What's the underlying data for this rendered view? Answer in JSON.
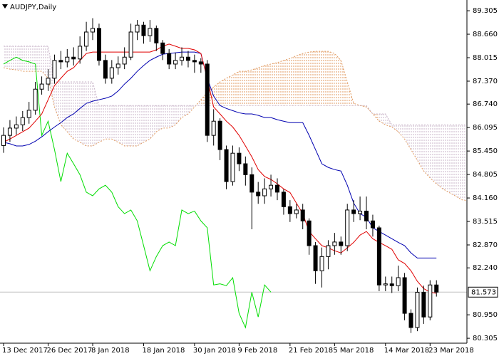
{
  "chart_data": {
    "type": "candlestick",
    "title": "AUDJPY,Daily",
    "categories": [
      "13 Dec 2017",
      null,
      null,
      null,
      null,
      null,
      null,
      "26 Dec 2017",
      null,
      null,
      null,
      null,
      null,
      null,
      "8 Jan 2018",
      null,
      null,
      null,
      null,
      null,
      null,
      null,
      "18 Jan 2018",
      null,
      null,
      null,
      null,
      null,
      null,
      null,
      "30 Jan 2018",
      null,
      null,
      null,
      null,
      null,
      null,
      "9 Feb 2018",
      null,
      null,
      null,
      null,
      null,
      null,
      null,
      "21 Feb 2018",
      null,
      null,
      null,
      null,
      null,
      null,
      "5 Mar 2018",
      null,
      null,
      null,
      null,
      null,
      null,
      null,
      "14 Mar 2018",
      null,
      null,
      null,
      null,
      null,
      null,
      "23 Mar 2018",
      null,
      null,
      null,
      null,
      null,
      null
    ],
    "open": [
      85.6,
      85.88,
      86.08,
      86.17,
      86.37,
      86.57,
      87.15,
      87.29,
      87.45,
      87.94,
      87.9,
      88.03,
      87.98,
      88.33,
      88.72,
      88.82,
      87.94,
      87.45,
      87.74,
      87.84,
      88.03,
      88.72,
      88.91,
      88.62,
      88.82,
      88.42,
      88.13,
      87.84,
      87.94,
      88.03,
      87.94,
      87.9,
      87.84,
      85.88,
      86.27,
      85.49,
      84.61,
      85.39,
      85.1,
      84.8,
      84.32,
      84.22,
      84.41,
      84.51,
      84.32,
      83.92,
      83.73,
      83.83,
      83.53,
      82.85,
      82.16,
      82.55,
      82.85,
      82.95,
      82.85,
      83.83,
      83.73,
      83.8,
      83.53,
      83.34,
      81.77,
      81.8,
      81.75,
      81.97,
      80.99,
      80.6,
      81.57,
      80.89,
      81.77,
      null,
      null,
      null,
      null,
      null
    ],
    "high": [
      86.1,
      86.3,
      86.4,
      86.55,
      86.8,
      87.35,
      87.5,
      87.7,
      88.1,
      88.2,
      88.25,
      88.3,
      88.6,
      89.0,
      89.1,
      88.95,
      88.1,
      87.95,
      88.05,
      88.3,
      88.95,
      89.05,
      89.0,
      89.05,
      88.9,
      88.5,
      88.25,
      88.15,
      88.3,
      88.2,
      88.1,
      88.0,
      87.95,
      86.6,
      86.35,
      85.6,
      85.6,
      85.55,
      85.3,
      85.0,
      84.6,
      84.7,
      84.8,
      84.7,
      84.4,
      84.1,
      84.0,
      84.0,
      83.6,
      82.95,
      82.8,
      83.0,
      83.2,
      83.1,
      84.0,
      84.1,
      84.2,
      84.2,
      83.7,
      83.4,
      82.0,
      82.0,
      82.3,
      82.1,
      81.1,
      81.7,
      81.75,
      81.9,
      81.9,
      null,
      null,
      null,
      null,
      null
    ],
    "low": [
      85.4,
      85.7,
      85.9,
      86.0,
      86.2,
      86.45,
      87.0,
      87.1,
      87.3,
      87.7,
      87.75,
      87.8,
      87.85,
      88.2,
      88.5,
      87.8,
      87.3,
      87.3,
      87.55,
      87.7,
      87.95,
      88.5,
      88.4,
      88.45,
      88.2,
      87.95,
      87.7,
      87.7,
      87.8,
      87.75,
      87.6,
      87.6,
      85.7,
      85.6,
      85.2,
      84.4,
      84.5,
      84.9,
      84.5,
      83.3,
      84.0,
      84.0,
      84.2,
      84.1,
      83.7,
      83.5,
      83.6,
      83.3,
      82.6,
      81.8,
      81.7,
      82.2,
      82.6,
      82.6,
      82.7,
      83.5,
      83.55,
      83.3,
      83.1,
      81.6,
      81.6,
      81.55,
      81.6,
      80.8,
      80.45,
      80.5,
      80.7,
      80.8,
      81.45,
      null,
      null,
      null,
      null,
      null
    ],
    "close": [
      85.88,
      86.08,
      86.17,
      86.37,
      86.57,
      87.15,
      87.29,
      87.45,
      87.94,
      87.9,
      88.03,
      87.98,
      88.33,
      88.72,
      88.82,
      87.94,
      87.45,
      87.74,
      87.84,
      88.03,
      88.72,
      88.91,
      88.62,
      88.82,
      88.42,
      88.13,
      87.84,
      87.94,
      88.03,
      87.94,
      87.9,
      87.84,
      85.88,
      86.27,
      85.49,
      84.61,
      85.39,
      85.1,
      84.8,
      84.32,
      84.22,
      84.41,
      84.51,
      84.32,
      83.92,
      83.73,
      83.83,
      83.53,
      82.85,
      82.16,
      82.55,
      82.85,
      82.95,
      82.85,
      83.83,
      83.73,
      83.8,
      83.53,
      83.34,
      81.77,
      81.8,
      81.75,
      81.97,
      80.99,
      80.6,
      81.57,
      80.89,
      81.77,
      81.573,
      null,
      null,
      null,
      null,
      null
    ],
    "up_color": "#ffffff",
    "down_color": "#000000",
    "tenkan_sen": {
      "color": "#e00000",
      "values": [
        85.69,
        85.78,
        85.88,
        85.98,
        86.08,
        86.27,
        86.47,
        86.86,
        87.25,
        87.45,
        87.64,
        87.74,
        87.94,
        88.13,
        88.17,
        88.17,
        88.17,
        88.17,
        88.17,
        88.17,
        88.17,
        88.17,
        88.17,
        88.17,
        88.23,
        88.33,
        88.39,
        88.33,
        88.27,
        88.27,
        88.23,
        88.13,
        87.45,
        86.66,
        86.47,
        86.27,
        86.11,
        85.88,
        85.59,
        85.29,
        84.94,
        84.75,
        84.67,
        84.55,
        84.41,
        84.31,
        84.02,
        83.73,
        83.24,
        83.04,
        82.85,
        82.79,
        82.71,
        82.65,
        82.79,
        82.94,
        83.14,
        83.24,
        83.04,
        82.94,
        82.85,
        82.75,
        82.46,
        82.36,
        82.16,
        81.87,
        81.67,
        81.57,
        81.54,
        null,
        null,
        null,
        null,
        null
      ]
    },
    "kijun_sen": {
      "color": "#0000b0",
      "values": [
        85.69,
        85.65,
        85.59,
        85.59,
        85.63,
        85.72,
        85.84,
        85.98,
        86.11,
        86.23,
        86.37,
        86.47,
        86.62,
        86.76,
        86.82,
        86.86,
        86.9,
        86.96,
        87.1,
        87.29,
        87.45,
        87.64,
        87.8,
        87.94,
        88.03,
        88.11,
        88.13,
        88.15,
        88.17,
        88.17,
        88.17,
        88.13,
        87.45,
        86.96,
        86.7,
        86.62,
        86.56,
        86.5,
        86.47,
        86.47,
        86.43,
        86.37,
        86.37,
        86.31,
        86.27,
        86.23,
        86.23,
        86.23,
        85.88,
        85.49,
        85.1,
        85.0,
        84.94,
        84.9,
        84.51,
        84.02,
        83.73,
        83.63,
        83.34,
        83.24,
        83.14,
        83.04,
        82.94,
        82.85,
        82.65,
        82.51,
        82.51,
        82.51,
        82.51,
        null,
        null,
        null,
        null,
        null
      ]
    },
    "chikou_span": {
      "color": "#00dd00",
      "values": [
        87.84,
        87.94,
        88.03,
        87.94,
        87.9,
        87.84,
        85.88,
        86.27,
        85.49,
        84.61,
        85.39,
        85.1,
        84.8,
        84.32,
        84.22,
        84.41,
        84.51,
        84.32,
        83.92,
        83.73,
        83.83,
        83.53,
        82.85,
        82.16,
        82.55,
        82.85,
        82.95,
        82.85,
        83.83,
        83.73,
        83.8,
        83.53,
        83.34,
        81.77,
        81.8,
        81.75,
        81.97,
        80.99,
        80.6,
        81.57,
        80.89,
        81.77,
        81.573,
        null,
        null,
        null,
        null,
        null,
        null,
        null,
        null,
        null,
        null,
        null,
        null,
        null,
        null,
        null,
        null,
        null,
        null,
        null,
        null,
        null,
        null,
        null,
        null,
        null,
        null,
        null,
        null,
        null,
        null,
        null
      ]
    },
    "senkou_span_a": {
      "color": "#e09a60",
      "values": [
        87.74,
        87.7,
        87.68,
        87.64,
        87.64,
        87.64,
        87.64,
        87.45,
        86.66,
        86.17,
        85.98,
        85.78,
        85.69,
        85.59,
        85.59,
        85.69,
        85.78,
        85.78,
        85.69,
        85.59,
        85.59,
        85.59,
        85.69,
        85.78,
        85.98,
        86.08,
        86.08,
        86.17,
        86.37,
        86.47,
        86.66,
        86.86,
        87.06,
        87.21,
        87.35,
        87.45,
        87.54,
        87.64,
        87.64,
        87.68,
        87.74,
        87.8,
        87.84,
        87.88,
        87.94,
        87.99,
        88.07,
        88.13,
        88.17,
        88.19,
        88.19,
        88.19,
        88.13,
        87.94,
        87.35,
        86.76,
        86.7,
        86.66,
        86.47,
        86.27,
        86.17,
        86.11,
        85.98,
        85.78,
        85.49,
        85.2,
        84.9,
        84.71,
        84.55,
        84.41,
        84.31,
        84.21,
        84.11,
        84.08
      ]
    },
    "senkou_span_b": {
      "color": "#c8b4c8",
      "values": [
        88.33,
        88.33,
        88.33,
        88.33,
        88.33,
        88.33,
        88.33,
        88.33,
        87.35,
        87.35,
        87.35,
        87.35,
        87.35,
        87.35,
        87.35,
        86.7,
        86.7,
        86.7,
        86.7,
        86.7,
        86.7,
        86.7,
        86.7,
        86.7,
        86.7,
        86.7,
        86.7,
        86.7,
        86.7,
        86.7,
        86.7,
        86.7,
        86.7,
        86.7,
        86.7,
        86.7,
        86.7,
        86.7,
        86.7,
        86.7,
        86.7,
        86.7,
        86.7,
        86.7,
        86.7,
        86.7,
        86.7,
        86.7,
        86.7,
        86.7,
        86.7,
        86.7,
        86.7,
        86.7,
        86.7,
        86.7,
        86.7,
        86.7,
        86.47,
        86.47,
        86.47,
        86.17,
        86.17,
        86.17,
        86.17,
        86.17,
        86.17,
        86.17,
        86.17,
        86.17,
        86.17,
        86.17,
        86.17,
        86.17
      ]
    },
    "current_price": 81.573,
    "current_price_color": "#c0c0c0",
    "ylim": [
      80.17,
      89.6
    ],
    "yticks": [
      89.305,
      {
        "value": 88.66,
        "label": "88.660"
      },
      88.015,
      {
        "value": 87.37,
        "label": "87.370"
      },
      {
        "value": 86.74,
        "label": "86.740"
      },
      86.095,
      {
        "value": 85.45,
        "label": "85.450"
      },
      84.805,
      {
        "value": 84.16,
        "label": "84.160"
      },
      83.515,
      {
        "value": 82.87,
        "label": "82.870"
      },
      {
        "value": 82.24,
        "label": "82.240"
      },
      {
        "value": 80.95,
        "label": "80.950"
      },
      80.305
    ],
    "grid": false
  }
}
